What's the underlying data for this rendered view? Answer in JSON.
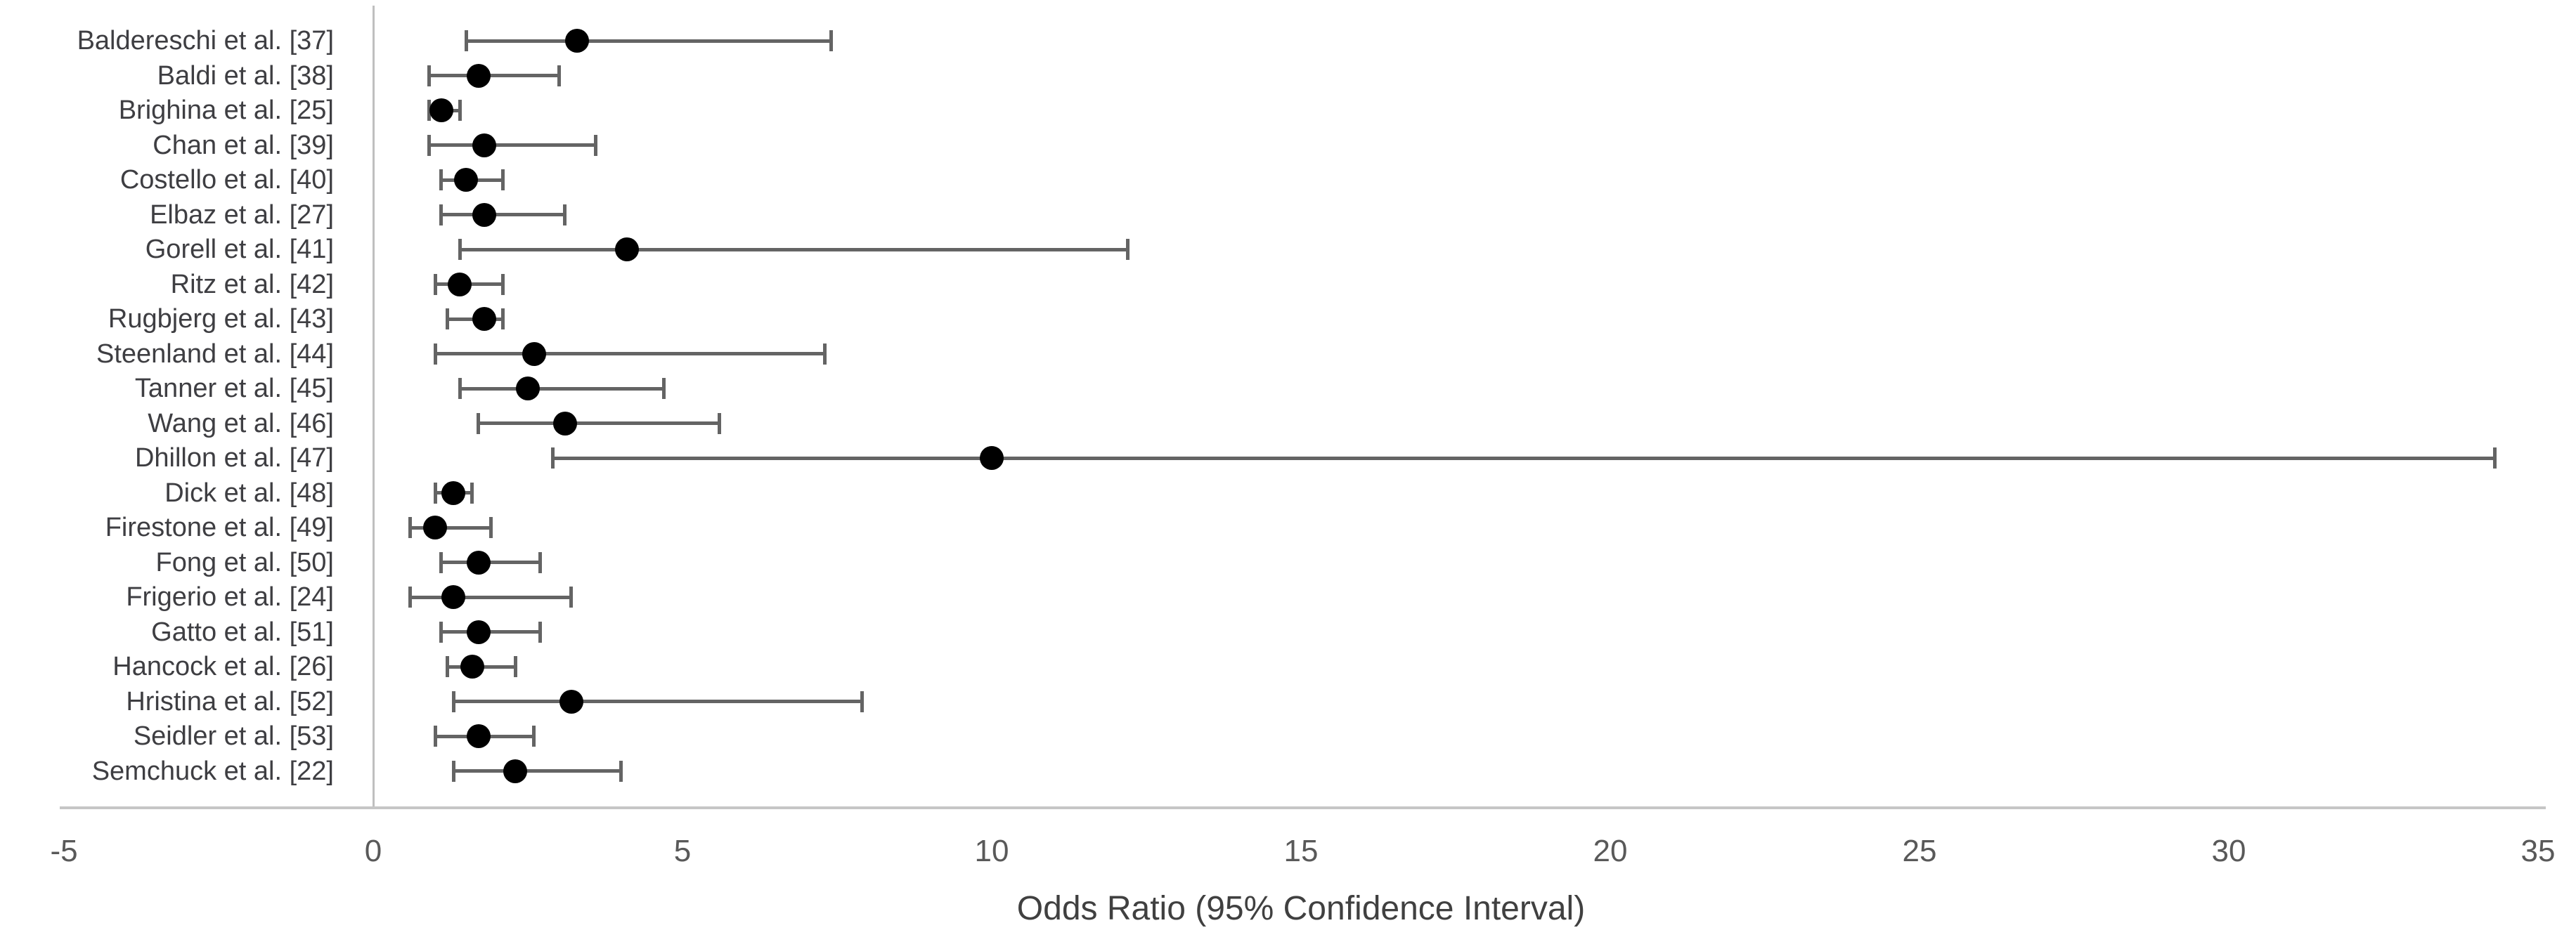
{
  "chart_data": {
    "type": "scatter",
    "subtype": "forest_plot",
    "title": "",
    "xlabel": "Odds Ratio (95% Confidence Interval)",
    "ylabel": "",
    "xlim": [
      -5,
      35
    ],
    "xticks": [
      -5,
      0,
      5,
      10,
      15,
      20,
      25,
      30,
      35
    ],
    "grid": false,
    "legend": "none",
    "marker": "circle",
    "studies": [
      {
        "label": "Baldereschi et al. [37]",
        "or": 3.3,
        "ci_low": 1.5,
        "ci_high": 7.4
      },
      {
        "label": "Baldi et al. [38]",
        "or": 1.7,
        "ci_low": 0.9,
        "ci_high": 3.0
      },
      {
        "label": "Brighina et al. [25]",
        "or": 1.1,
        "ci_low": 0.9,
        "ci_high": 1.4
      },
      {
        "label": "Chan et al. [39]",
        "or": 1.8,
        "ci_low": 0.9,
        "ci_high": 3.6
      },
      {
        "label": "Costello et al. [40]",
        "or": 1.5,
        "ci_low": 1.1,
        "ci_high": 2.1
      },
      {
        "label": "Elbaz et al. [27]",
        "or": 1.8,
        "ci_low": 1.1,
        "ci_high": 3.1
      },
      {
        "label": "Gorell et al. [41]",
        "or": 4.1,
        "ci_low": 1.4,
        "ci_high": 12.2
      },
      {
        "label": "Ritz et al. [42]",
        "or": 1.4,
        "ci_low": 1.0,
        "ci_high": 2.1
      },
      {
        "label": "Rugbjerg et al. [43]",
        "or": 1.8,
        "ci_low": 1.2,
        "ci_high": 2.1
      },
      {
        "label": "Steenland et al. [44]",
        "or": 2.6,
        "ci_low": 1.0,
        "ci_high": 7.3
      },
      {
        "label": "Tanner et al. [45]",
        "or": 2.5,
        "ci_low": 1.4,
        "ci_high": 4.7
      },
      {
        "label": "Wang et al. [46]",
        "or": 3.1,
        "ci_low": 1.7,
        "ci_high": 5.6
      },
      {
        "label": "Dhillon et al. [47]",
        "or": 10.0,
        "ci_low": 2.9,
        "ci_high": 34.3
      },
      {
        "label": "Dick et al. [48]",
        "or": 1.3,
        "ci_low": 1.0,
        "ci_high": 1.6
      },
      {
        "label": "Firestone et al. [49]",
        "or": 1.0,
        "ci_low": 0.6,
        "ci_high": 1.9
      },
      {
        "label": "Fong et al. [50]",
        "or": 1.7,
        "ci_low": 1.1,
        "ci_high": 2.7
      },
      {
        "label": "Frigerio et al. [24]",
        "or": 1.3,
        "ci_low": 0.6,
        "ci_high": 3.2
      },
      {
        "label": "Gatto et al. [51]",
        "or": 1.7,
        "ci_low": 1.1,
        "ci_high": 2.7
      },
      {
        "label": "Hancock et al. [26]",
        "or": 1.6,
        "ci_low": 1.2,
        "ci_high": 2.3
      },
      {
        "label": "Hristina et al. [52]",
        "or": 3.2,
        "ci_low": 1.3,
        "ci_high": 7.9
      },
      {
        "label": "Seidler et al. [53]",
        "or": 1.7,
        "ci_low": 1.0,
        "ci_high": 2.6
      },
      {
        "label": "Semchuck et al. [22]",
        "or": 2.3,
        "ci_low": 1.3,
        "ci_high": 4.0
      }
    ],
    "colors": {
      "marker": "#000000",
      "error_bar": "#646464",
      "axis_line": "#c6c6c6",
      "zero_line": "#bfbfbf",
      "tick_label": "#595959",
      "study_label": "#3e3e42",
      "xlabel": "#404040",
      "background": "#ffffff"
    }
  }
}
